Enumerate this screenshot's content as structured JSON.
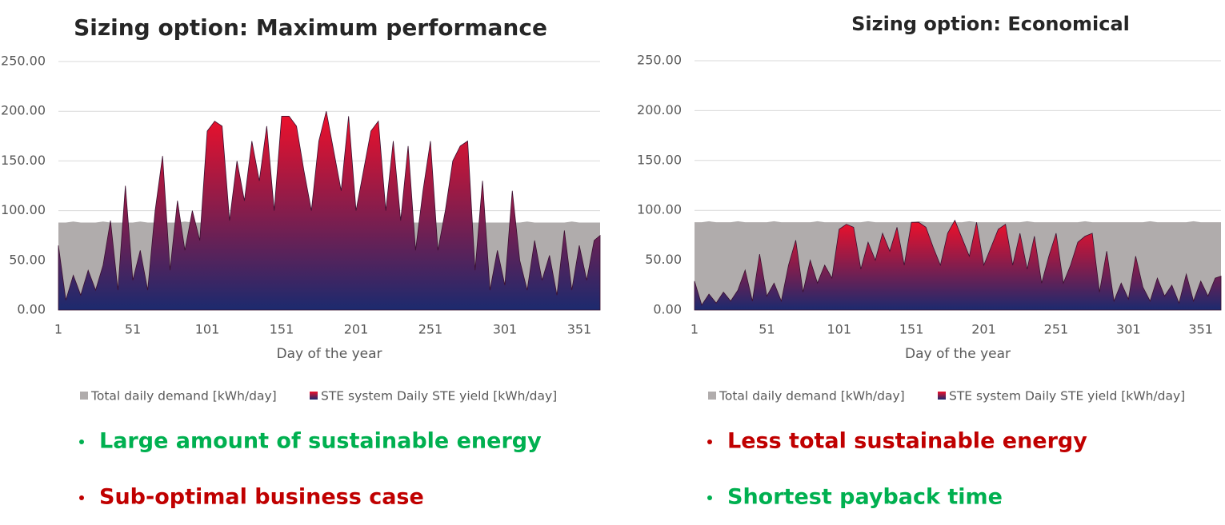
{
  "chart_data": [
    {
      "type": "area",
      "title": "Sizing option: Maximum performance",
      "xlabel": "Day of the year",
      "xlim": [
        1,
        365
      ],
      "xticks": [
        1,
        51,
        101,
        151,
        201,
        251,
        301,
        351
      ],
      "ylim": [
        0,
        250
      ],
      "yticks": [
        {
          "value": 0,
          "label": "0.00"
        },
        {
          "value": 50,
          "label": "50.00"
        },
        {
          "value": 100,
          "label": "100.00"
        },
        {
          "value": 150,
          "label": "150.00"
        },
        {
          "value": 200,
          "label": "200.00"
        },
        {
          "value": 250,
          "label": "250.00"
        }
      ],
      "grid": true,
      "x": [
        1,
        6,
        11,
        16,
        21,
        26,
        31,
        36,
        41,
        46,
        51,
        56,
        61,
        66,
        71,
        76,
        81,
        86,
        91,
        96,
        101,
        106,
        111,
        116,
        121,
        126,
        131,
        136,
        141,
        146,
        151,
        156,
        161,
        166,
        171,
        176,
        181,
        186,
        191,
        196,
        201,
        206,
        211,
        216,
        221,
        226,
        231,
        236,
        241,
        246,
        251,
        256,
        261,
        266,
        271,
        276,
        281,
        286,
        291,
        296,
        301,
        306,
        311,
        316,
        321,
        326,
        331,
        336,
        341,
        346,
        351,
        356,
        361,
        365
      ],
      "series": [
        {
          "name": "Total daily demand [kWh/day]",
          "color": "#b0acac",
          "values": [
            88,
            88,
            89,
            88,
            88,
            88,
            89,
            88,
            88,
            88,
            88,
            89,
            88,
            88,
            88,
            88,
            88,
            89,
            88,
            88,
            88,
            88,
            88,
            88,
            89,
            88,
            88,
            88,
            88,
            88,
            88,
            89,
            88,
            88,
            88,
            88,
            88,
            88,
            89,
            88,
            88,
            88,
            88,
            88,
            88,
            88,
            89,
            88,
            88,
            88,
            88,
            88,
            88,
            88,
            89,
            88,
            88,
            88,
            88,
            88,
            88,
            88,
            88,
            89,
            88,
            88,
            88,
            88,
            88,
            89,
            88,
            88,
            88,
            88
          ]
        },
        {
          "name": "STE system Daily STE yield [kWh/day]",
          "color": [
            "#f0102a",
            "#1c2a6e"
          ],
          "values": [
            65,
            10,
            35,
            15,
            40,
            20,
            45,
            90,
            20,
            125,
            30,
            60,
            20,
            100,
            155,
            40,
            110,
            60,
            100,
            70,
            180,
            190,
            185,
            90,
            150,
            110,
            170,
            130,
            185,
            100,
            195,
            195,
            185,
            140,
            100,
            170,
            200,
            160,
            120,
            195,
            100,
            140,
            180,
            190,
            100,
            170,
            90,
            165,
            60,
            120,
            170,
            60,
            100,
            150,
            165,
            170,
            40,
            130,
            20,
            60,
            25,
            120,
            50,
            20,
            70,
            30,
            55,
            15,
            80,
            20,
            65,
            30,
            70,
            75
          ]
        }
      ],
      "annotations": [
        {
          "text": "Large amount of sustainable energy",
          "color": "#00b050"
        },
        {
          "text": "Sub-optimal business case",
          "color": "#c00000"
        }
      ]
    },
    {
      "type": "area",
      "title": "Sizing option: Economical",
      "xlabel": "Day of the year",
      "xlim": [
        1,
        365
      ],
      "xticks": [
        1,
        51,
        101,
        151,
        201,
        251,
        301,
        351
      ],
      "ylim": [
        0,
        250
      ],
      "yticks": [
        {
          "value": 0,
          "label": "0.00"
        },
        {
          "value": 50,
          "label": "50.00"
        },
        {
          "value": 100,
          "label": "100.00"
        },
        {
          "value": 150,
          "label": "150.00"
        },
        {
          "value": 200,
          "label": "200.00"
        },
        {
          "value": 250,
          "label": "250.00"
        }
      ],
      "grid": true,
      "x": [
        1,
        6,
        11,
        16,
        21,
        26,
        31,
        36,
        41,
        46,
        51,
        56,
        61,
        66,
        71,
        76,
        81,
        86,
        91,
        96,
        101,
        106,
        111,
        116,
        121,
        126,
        131,
        136,
        141,
        146,
        151,
        156,
        161,
        166,
        171,
        176,
        181,
        186,
        191,
        196,
        201,
        206,
        211,
        216,
        221,
        226,
        231,
        236,
        241,
        246,
        251,
        256,
        261,
        266,
        271,
        276,
        281,
        286,
        291,
        296,
        301,
        306,
        311,
        316,
        321,
        326,
        331,
        336,
        341,
        346,
        351,
        356,
        361,
        365
      ],
      "series": [
        {
          "name": "Total daily demand [kWh/day]",
          "color": "#b0acac",
          "values": [
            88,
            88,
            89,
            88,
            88,
            88,
            89,
            88,
            88,
            88,
            88,
            89,
            88,
            88,
            88,
            88,
            88,
            89,
            88,
            88,
            88,
            88,
            88,
            88,
            89,
            88,
            88,
            88,
            88,
            88,
            88,
            89,
            88,
            88,
            88,
            88,
            88,
            88,
            89,
            88,
            88,
            88,
            88,
            88,
            88,
            88,
            89,
            88,
            88,
            88,
            88,
            88,
            88,
            88,
            89,
            88,
            88,
            88,
            88,
            88,
            88,
            88,
            88,
            89,
            88,
            88,
            88,
            88,
            88,
            89,
            88,
            88,
            88,
            88
          ]
        },
        {
          "name": "STE system Daily STE yield [kWh/day]",
          "color": [
            "#f0102a",
            "#1c2a6e"
          ],
          "values": [
            29,
            5,
            16,
            7,
            18,
            9,
            20,
            40,
            9,
            56,
            14,
            27,
            9,
            45,
            70,
            18,
            50,
            27,
            45,
            32,
            81,
            86,
            83,
            41,
            68,
            50,
            77,
            59,
            83,
            45,
            88,
            88,
            83,
            63,
            45,
            77,
            90,
            72,
            54,
            88,
            45,
            63,
            81,
            86,
            45,
            77,
            41,
            74,
            27,
            54,
            77,
            27,
            45,
            68,
            74,
            77,
            18,
            59,
            9,
            27,
            11,
            54,
            23,
            9,
            32,
            14,
            25,
            7,
            36,
            9,
            29,
            14,
            32,
            34
          ]
        }
      ],
      "annotations": [
        {
          "text": "Less total sustainable energy",
          "color": "#c00000"
        },
        {
          "text": "Shortest payback time",
          "color": "#00b050"
        }
      ]
    }
  ]
}
